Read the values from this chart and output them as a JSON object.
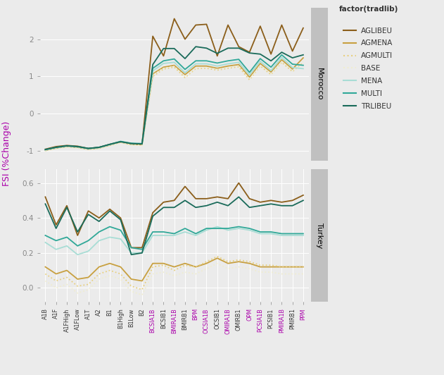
{
  "x_labels": [
    "A1B",
    "A1F",
    "A1FHigh",
    "A1FLow",
    "A1T",
    "A2",
    "B1",
    "B1High",
    "B1Low",
    "B2",
    "BCSIA1B",
    "BCSIB1",
    "BMIRA1B",
    "BMIRB1",
    "BPM",
    "OCSIA1B",
    "OCSIB1",
    "OMIRA1B",
    "OMIRB1",
    "OPM",
    "PCSIA1B",
    "PCSIB1",
    "PMIRA1B",
    "PMIRB1",
    "PPM"
  ],
  "x_label_colors": [
    "black",
    "black",
    "black",
    "black",
    "black",
    "black",
    "black",
    "black",
    "black",
    "black",
    "purple",
    "black",
    "purple",
    "black",
    "purple",
    "purple",
    "black",
    "purple",
    "black",
    "purple",
    "purple",
    "black",
    "purple",
    "black",
    "purple"
  ],
  "series": {
    "AGLIBEU": {
      "color": "#8B5E1A",
      "linestyle": "-",
      "morocco": [
        -0.95,
        -0.88,
        -0.85,
        -0.87,
        -0.93,
        -0.9,
        -0.82,
        -0.75,
        -0.8,
        -0.82,
        2.08,
        1.55,
        2.55,
        2.0,
        2.38,
        2.4,
        1.55,
        2.38,
        1.8,
        1.65,
        2.35,
        1.6,
        2.38,
        1.68,
        2.3
      ],
      "turkey": [
        0.52,
        0.36,
        0.47,
        0.3,
        0.44,
        0.4,
        0.45,
        0.4,
        0.23,
        0.23,
        0.43,
        0.49,
        0.5,
        0.58,
        0.51,
        0.51,
        0.52,
        0.51,
        0.6,
        0.51,
        0.49,
        0.5,
        0.49,
        0.5,
        0.53
      ]
    },
    "AGMENA": {
      "color": "#C8A040",
      "linestyle": "-",
      "morocco": [
        -0.98,
        -0.92,
        -0.88,
        -0.9,
        -0.95,
        -0.92,
        -0.84,
        -0.76,
        -0.82,
        -0.83,
        1.07,
        1.25,
        1.3,
        1.05,
        1.28,
        1.28,
        1.22,
        1.28,
        1.32,
        0.98,
        1.35,
        1.12,
        1.45,
        1.2,
        1.5
      ],
      "turkey": [
        0.12,
        0.08,
        0.1,
        0.05,
        0.06,
        0.12,
        0.14,
        0.12,
        0.05,
        0.04,
        0.14,
        0.14,
        0.12,
        0.14,
        0.12,
        0.14,
        0.17,
        0.14,
        0.15,
        0.14,
        0.12,
        0.12,
        0.12,
        0.12,
        0.12
      ]
    },
    "AGMULTI": {
      "color": "#E8D080",
      "linestyle": "dotted",
      "morocco": [
        -0.99,
        -0.93,
        -0.89,
        -0.91,
        -0.96,
        -0.93,
        -0.85,
        -0.77,
        -0.83,
        -0.84,
        1.0,
        1.2,
        1.25,
        0.97,
        1.21,
        1.22,
        1.17,
        1.22,
        1.26,
        0.91,
        1.28,
        1.05,
        1.38,
        1.13,
        1.38
      ],
      "turkey": [
        0.08,
        0.04,
        0.06,
        0.01,
        0.02,
        0.08,
        0.1,
        0.08,
        0.01,
        -0.01,
        0.12,
        0.13,
        0.1,
        0.13,
        0.12,
        0.15,
        0.18,
        0.15,
        0.16,
        0.15,
        0.13,
        0.13,
        0.12,
        0.12,
        0.12
      ]
    },
    "BASE": {
      "color": "#F0EDD0",
      "linestyle": "dotted",
      "morocco": [
        -1.0,
        -0.94,
        -0.9,
        -0.92,
        -0.97,
        -0.94,
        -0.86,
        -0.78,
        -0.84,
        -0.85,
        1.04,
        1.22,
        1.27,
        1.0,
        1.23,
        1.24,
        1.19,
        1.24,
        1.28,
        0.93,
        1.3,
        1.07,
        1.4,
        1.15,
        1.4
      ],
      "turkey": [
        0.04,
        0.0,
        0.02,
        -0.03,
        -0.01,
        0.05,
        0.07,
        0.05,
        -0.02,
        -0.04,
        0.08,
        0.09,
        0.07,
        0.09,
        0.08,
        0.11,
        0.14,
        0.11,
        0.12,
        0.11,
        0.09,
        0.09,
        0.08,
        0.08,
        0.08
      ]
    },
    "MENA": {
      "color": "#A8DDD5",
      "linestyle": "-",
      "morocco": [
        -0.97,
        -0.91,
        -0.87,
        -0.89,
        -0.94,
        -0.91,
        -0.83,
        -0.75,
        -0.8,
        -0.81,
        1.15,
        1.35,
        1.38,
        1.1,
        1.34,
        1.34,
        1.28,
        1.34,
        1.38,
        1.04,
        1.41,
        1.16,
        1.51,
        1.24,
        1.21
      ],
      "turkey": [
        0.26,
        0.22,
        0.24,
        0.19,
        0.21,
        0.27,
        0.29,
        0.28,
        0.2,
        0.2,
        0.3,
        0.3,
        0.3,
        0.32,
        0.3,
        0.33,
        0.35,
        0.33,
        0.34,
        0.33,
        0.31,
        0.31,
        0.3,
        0.3,
        0.3
      ]
    },
    "MULTI": {
      "color": "#30A898",
      "linestyle": "-",
      "morocco": [
        -0.96,
        -0.9,
        -0.86,
        -0.88,
        -0.93,
        -0.9,
        -0.82,
        -0.74,
        -0.79,
        -0.8,
        1.22,
        1.42,
        1.47,
        1.19,
        1.42,
        1.42,
        1.36,
        1.42,
        1.46,
        1.11,
        1.48,
        1.25,
        1.58,
        1.33,
        1.3
      ],
      "turkey": [
        0.3,
        0.27,
        0.29,
        0.24,
        0.27,
        0.32,
        0.35,
        0.33,
        0.23,
        0.22,
        0.32,
        0.32,
        0.31,
        0.34,
        0.31,
        0.34,
        0.34,
        0.34,
        0.35,
        0.34,
        0.32,
        0.32,
        0.31,
        0.31,
        0.31
      ]
    },
    "TRLIBEU": {
      "color": "#1A6B5A",
      "linestyle": "-",
      "morocco": [
        -0.96,
        -0.9,
        -0.86,
        -0.88,
        -0.93,
        -0.9,
        -0.82,
        -0.75,
        -0.8,
        -0.81,
        1.32,
        1.75,
        1.75,
        1.48,
        1.8,
        1.76,
        1.62,
        1.76,
        1.76,
        1.63,
        1.6,
        1.42,
        1.65,
        1.5,
        1.58
      ],
      "turkey": [
        0.48,
        0.34,
        0.46,
        0.32,
        0.42,
        0.38,
        0.44,
        0.39,
        0.19,
        0.2,
        0.41,
        0.46,
        0.46,
        0.5,
        0.46,
        0.47,
        0.49,
        0.47,
        0.52,
        0.46,
        0.47,
        0.48,
        0.47,
        0.47,
        0.5
      ]
    }
  },
  "panel_bg": "#EBEBEB",
  "plot_bg": "#EBEBEB",
  "strip_bg": "#C0C0C0",
  "grid_color": "white",
  "ylabel": "FSI (%Change)",
  "legend_title": "factor(tradlib)",
  "morocco_ylim": [
    -1.25,
    2.85
  ],
  "turkey_ylim": [
    -0.08,
    0.68
  ],
  "morocco_yticks": [
    -1,
    0,
    1,
    2
  ],
  "turkey_yticks": [
    0.0,
    0.2,
    0.4,
    0.6
  ]
}
